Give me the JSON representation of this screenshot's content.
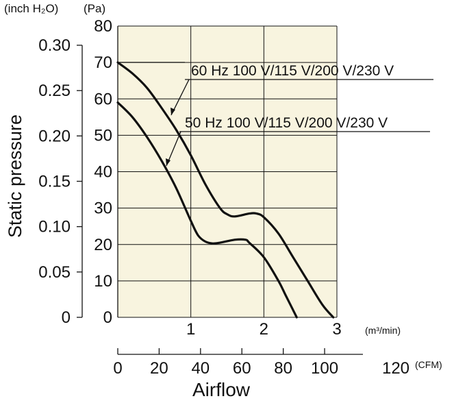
{
  "chart_data": {
    "type": "line",
    "xlabel": "Airflow",
    "ylabel": "Static pressure",
    "units": {
      "inch_h2o": "(inch H₂O)",
      "pa": "(Pa)",
      "m3min": "(m³/min)",
      "cfm": "(CFM)"
    },
    "x_m3min_ticks": [
      "1",
      "2",
      "3"
    ],
    "x_m3min_range": [
      0,
      3
    ],
    "x_cfm_ticks": [
      "0",
      "20",
      "40",
      "60",
      "80",
      "100",
      "120"
    ],
    "x_cfm_range": [
      0,
      120
    ],
    "y_pa_ticks": [
      "0",
      "10",
      "20",
      "30",
      "40",
      "50",
      "60",
      "70",
      "80"
    ],
    "y_pa_range": [
      0,
      80
    ],
    "y_inch_ticks": [
      "0",
      "0.05",
      "0.10",
      "0.15",
      "0.20",
      "0.25",
      "0.30"
    ],
    "y_inch_values": [
      0,
      0.05,
      0.1,
      0.15,
      0.2,
      0.25,
      0.3
    ],
    "grid": true,
    "background": "#f8f4df",
    "series": [
      {
        "name": "60 Hz 100 V/115 V/200 V/230 V",
        "x": [
          0,
          0.2,
          0.4,
          0.6,
          0.8,
          1.0,
          1.2,
          1.4,
          1.5,
          1.6,
          1.8,
          1.9,
          2.0,
          2.2,
          2.4,
          2.6,
          2.8,
          2.95
        ],
        "y": [
          70,
          67,
          63,
          57.5,
          51.5,
          44.5,
          36.5,
          30,
          28.3,
          27.7,
          28.5,
          28.5,
          27.5,
          23,
          16.5,
          10,
          3.5,
          0
        ]
      },
      {
        "name": "50 Hz 100 V/115 V/200 V/230 V",
        "x": [
          0,
          0.2,
          0.4,
          0.6,
          0.8,
          1.0,
          1.1,
          1.2,
          1.3,
          1.4,
          1.6,
          1.75,
          1.8,
          2.0,
          2.2,
          2.3,
          2.45
        ],
        "y": [
          59,
          55,
          49.5,
          43,
          35.5,
          26.5,
          22.5,
          20.8,
          20.3,
          20.5,
          21.3,
          21.3,
          20.5,
          16.5,
          10,
          6,
          0
        ]
      }
    ]
  }
}
